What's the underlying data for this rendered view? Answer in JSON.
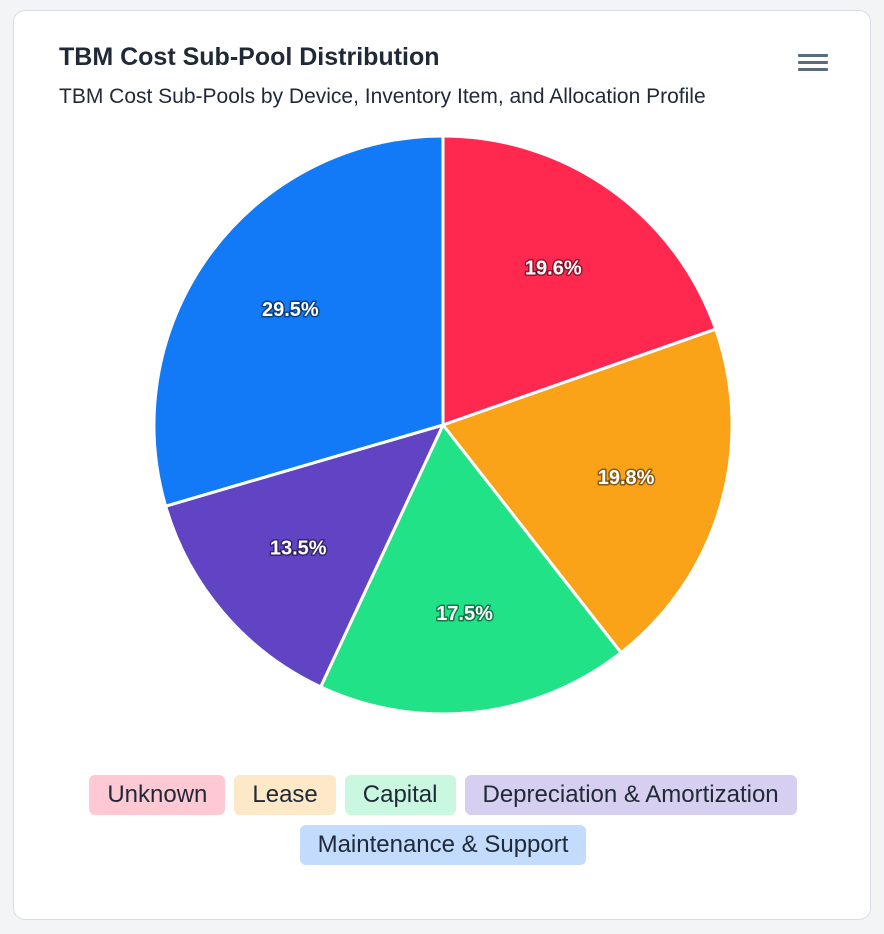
{
  "header": {
    "title": "TBM Cost Sub-Pool Distribution",
    "subtitle": "TBM Cost Sub-Pools by Device, Inventory Item, and Allocation Profile",
    "menu_icon": "hamburger-menu-icon"
  },
  "chart_data": {
    "type": "pie",
    "title": "TBM Cost Sub-Pool Distribution",
    "subtitle": "TBM Cost Sub-Pools by Device, Inventory Item, and Allocation Profile",
    "legend_position": "bottom",
    "slices": [
      {
        "name": "Unknown",
        "value": 19.6,
        "label": "19.6%",
        "color": "#ff2950",
        "legend_bg": "#ffc9d3"
      },
      {
        "name": "Lease",
        "value": 19.8,
        "label": "19.8%",
        "color": "#faa319",
        "legend_bg": "#fde8c7"
      },
      {
        "name": "Capital",
        "value": 17.5,
        "label": "17.5%",
        "color": "#21e286",
        "legend_bg": "#c9f7e0"
      },
      {
        "name": "Depreciation & Amortization",
        "value": 13.5,
        "label": "13.5%",
        "color": "#6044c4",
        "legend_bg": "#d6cff0"
      },
      {
        "name": "Maintenance & Support",
        "value": 29.5,
        "label": "29.5%",
        "color": "#1279f7",
        "legend_bg": "#c3dcfd"
      }
    ]
  }
}
